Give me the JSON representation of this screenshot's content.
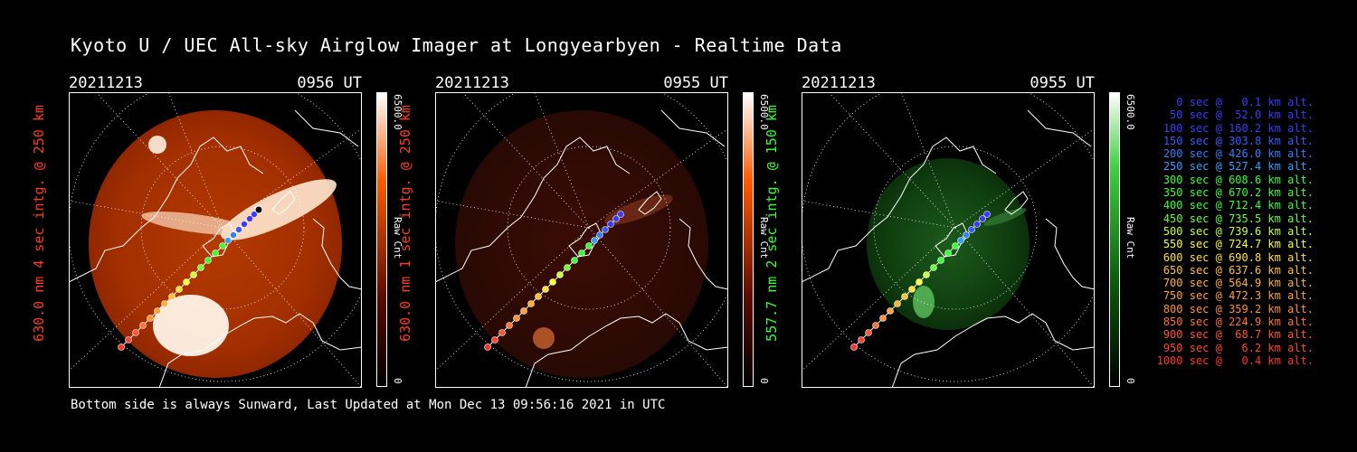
{
  "title": "Kyoto U / UEC All-sky Airglow Imager at Longyearbyen - Realtime Data",
  "footer": "Bottom side is always Sunward, Last Updated at Mon Dec 13 09:56:16 2021 in UTC",
  "panels": [
    {
      "date": "20211213",
      "time": "0956 UT",
      "label": "630.0 nm 4 sec intg. @ 250 km",
      "label_color": "#ff3b1f",
      "scale_max": "6500.0",
      "scale_unit": "Raw Cnt",
      "scale_min": "0",
      "colormap": "red",
      "brightness": "bright"
    },
    {
      "date": "20211213",
      "time": "0955 UT",
      "label": "630.0 nm 1 sec intg. @ 250 km",
      "label_color": "#ff3b1f",
      "scale_max": "6500.0",
      "scale_unit": "Raw Cnt",
      "scale_min": "0",
      "colormap": "red",
      "brightness": "dim"
    },
    {
      "date": "20211213",
      "time": "0955 UT",
      "label": "557.7 nm 2 sec intg. @ 150 km",
      "label_color": "#33ff33",
      "scale_max": "6500.0",
      "scale_unit": "Raw Cnt",
      "scale_min": "0",
      "colormap": "green",
      "brightness": "dim"
    }
  ],
  "legend": [
    {
      "text": "0 sec @   0.1 km alt.",
      "color": "#3a3aff"
    },
    {
      "text": "50 sec @  52.0 km alt.",
      "color": "#3a3aff"
    },
    {
      "text": "100 sec @ 160.2 km alt.",
      "color": "#3a3aff"
    },
    {
      "text": "150 sec @ 303.8 km alt.",
      "color": "#3a5aff"
    },
    {
      "text": "200 sec @ 426.0 km alt.",
      "color": "#2f7fff"
    },
    {
      "text": "250 sec @ 527.4 km alt.",
      "color": "#2fa0ff"
    },
    {
      "text": "300 sec @ 608.6 km alt.",
      "color": "#33ff33"
    },
    {
      "text": "350 sec @ 670.2 km alt.",
      "color": "#33ff33"
    },
    {
      "text": "400 sec @ 712.4 km alt.",
      "color": "#33ff33"
    },
    {
      "text": "450 sec @ 735.5 km alt.",
      "color": "#66ff33"
    },
    {
      "text": "500 sec @ 739.6 km alt.",
      "color": "#ccff33"
    },
    {
      "text": "550 sec @ 724.7 km alt.",
      "color": "#ffff33"
    },
    {
      "text": "600 sec @ 690.8 km alt.",
      "color": "#ffe033"
    },
    {
      "text": "650 sec @ 637.6 km alt.",
      "color": "#ffc033"
    },
    {
      "text": "700 sec @ 564.9 km alt.",
      "color": "#ffb033"
    },
    {
      "text": "750 sec @ 472.3 km alt.",
      "color": "#ffa033"
    },
    {
      "text": "800 sec @ 359.2 km alt.",
      "color": "#ff9033"
    },
    {
      "text": "850 sec @ 224.9 km alt.",
      "color": "#ff7033"
    },
    {
      "text": "900 sec @  68.7 km alt.",
      "color": "#ff5533"
    },
    {
      "text": "950 sec @   6.2 km alt.",
      "color": "#ff4433"
    },
    {
      "text": "1000 sec @   0.4 km alt.",
      "color": "#ff3322"
    }
  ]
}
